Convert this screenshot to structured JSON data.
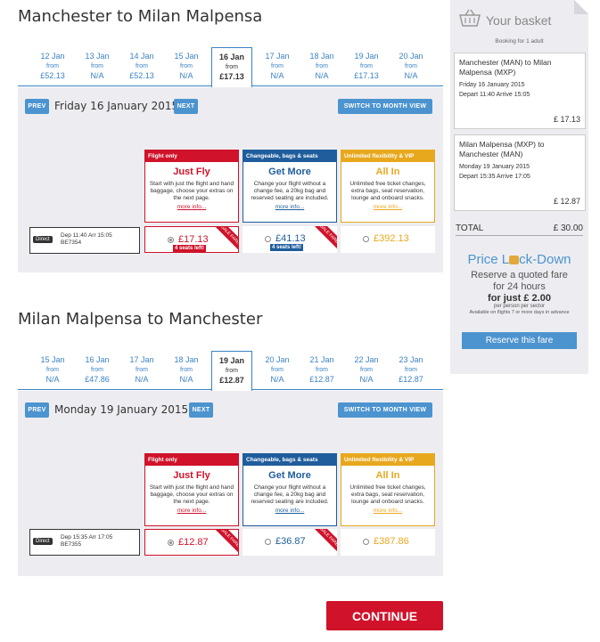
{
  "outbound": {
    "title": "Manchester to Milan Malpensa",
    "dates": [
      {
        "day": "12 Jan",
        "from": "from",
        "price": "£52.13"
      },
      {
        "day": "13 Jan",
        "from": "from",
        "price": "N/A"
      },
      {
        "day": "14 Jan",
        "from": "from",
        "price": "£52.13"
      },
      {
        "day": "15 Jan",
        "from": "from",
        "price": "N/A"
      },
      {
        "day": "16 Jan",
        "from": "from",
        "price": "£17.13"
      },
      {
        "day": "17 Jan",
        "from": "from",
        "price": "N/A"
      },
      {
        "day": "18 Jan",
        "from": "from",
        "price": "N/A"
      },
      {
        "day": "19 Jan",
        "from": "from",
        "price": "£17.13"
      },
      {
        "day": "20 Jan",
        "from": "from",
        "price": "N/A"
      }
    ],
    "prev": "PREV",
    "next": "NEXT",
    "selected_date": "Friday 16 January 2015",
    "month_view": "SWITCH TO MONTH VIEW",
    "flight": {
      "badge": "Direct",
      "times": "Dep 11:40 Arr 15:05",
      "number": "BE7354"
    },
    "prices": [
      {
        "amount": "£17.13",
        "seats": "4 seats left!",
        "sale": "SALE FARE"
      },
      {
        "amount": "£41.13",
        "seats": "4 seats left!",
        "sale": "SALE FARE"
      },
      {
        "amount": "£392.13"
      }
    ]
  },
  "inbound": {
    "title": "Milan Malpensa to Manchester",
    "dates": [
      {
        "day": "15 Jan",
        "from": "from",
        "price": "N/A"
      },
      {
        "day": "16 Jan",
        "from": "from",
        "price": "£47.86"
      },
      {
        "day": "17 Jan",
        "from": "from",
        "price": "N/A"
      },
      {
        "day": "18 Jan",
        "from": "from",
        "price": "N/A"
      },
      {
        "day": "19 Jan",
        "from": "from",
        "price": "£12.87"
      },
      {
        "day": "20 Jan",
        "from": "from",
        "price": "N/A"
      },
      {
        "day": "21 Jan",
        "from": "from",
        "price": "£12.87"
      },
      {
        "day": "22 Jan",
        "from": "from",
        "price": "N/A"
      },
      {
        "day": "23 Jan",
        "from": "from",
        "price": "£12.87"
      }
    ],
    "prev": "PREV",
    "next": "NEXT",
    "selected_date": "Monday 19 January 2015",
    "month_view": "SWITCH TO MONTH VIEW",
    "flight": {
      "badge": "Direct",
      "times": "Dep 15:35 Arr 17:05",
      "number": "BE7355"
    },
    "prices": [
      {
        "amount": "£12.87",
        "sale": "SALE FARE"
      },
      {
        "amount": "£36.87",
        "sale": "SALE FARE"
      },
      {
        "amount": "£387.86"
      }
    ]
  },
  "fares": [
    {
      "header": "Flight only",
      "name": "Just Fly",
      "desc": "Start with just the flight and hand baggage, choose your extras on the next page.",
      "more": "more info..."
    },
    {
      "header": "Changeable, bags & seats",
      "name": "Get More",
      "desc": "Change your flight without a change fee, a 20kg bag and reserved seating are included.",
      "more": "more info..."
    },
    {
      "header": "Unlimited flexibility & VIP",
      "name": "All In",
      "desc": "Unlimited free ticket changes, extra bags, seat reservation, lounge and onboard snacks.",
      "more": "more info..."
    }
  ],
  "colors": {
    "just_fly": "#d0122a",
    "get_more": "#1f5d9c",
    "all_in": "#e8a81e",
    "accent": "#4c94cf"
  },
  "continue": "CONTINUE",
  "basket": {
    "title": "Your basket",
    "booking_for": "Booking for 1 adult",
    "legs": [
      {
        "route": "Manchester (MAN) to Milan Malpensa (MXP)",
        "date": "Friday 16 January 2015",
        "times": "Depart 11:40 Arrive 15:05",
        "price": "£ 17.13"
      },
      {
        "route": "Milan Malpensa (MXP) to Manchester (MAN)",
        "date": "Monday 19 January 2015",
        "times": "Depart 15:35 Arrive 17:05",
        "price": "£ 12.87"
      }
    ],
    "total_label": "TOTAL",
    "total_value": "£ 30.00"
  },
  "price_lock": {
    "title_a": "Price L",
    "title_b": "ck-Down",
    "line1": "Reserve a quoted fare",
    "line2": "for 24 hours",
    "line3": "for just £ 2.00",
    "line4": "per person per sector",
    "line5": "Available on flights 7 or more days in advance",
    "button": "Reserve this fare"
  }
}
